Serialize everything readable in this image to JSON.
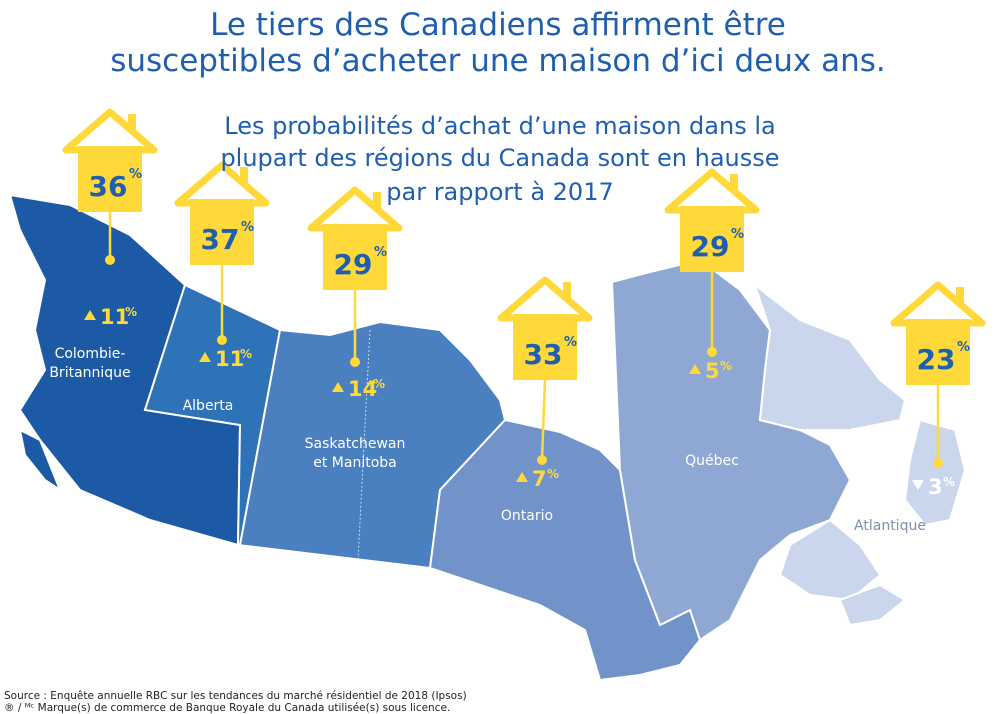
{
  "title": {
    "line1": "Le tiers des Canadiens affirment être",
    "line2": "susceptibles d’acheter une maison d’ici deux ans."
  },
  "subtitle": {
    "line1": "Les probabilités d’achat d’une maison dans la",
    "line2": "plupart des régions du Canada sont en hausse",
    "line3": "par rapport à 2017"
  },
  "colors": {
    "title": "#1f5fae",
    "house": "#ffd93a",
    "house_text": "#1f5fae",
    "change_text": "#f2c200",
    "bc": "#1d5aa5",
    "alberta": "#2e72b8",
    "sask_man": "#4a80bf",
    "ontario": "#7193c9",
    "quebec": "#8ea7d3",
    "atlantic": "#c9d6ec"
  },
  "regions": [
    {
      "name_line1": "Colombie-",
      "name_line2": "Britannique",
      "pct": "36",
      "change": "11",
      "direction": "up"
    },
    {
      "name_line1": "Alberta",
      "name_line2": "",
      "pct": "37",
      "change": "11",
      "direction": "up"
    },
    {
      "name_line1": "Saskatchewan",
      "name_line2": "et Manitoba",
      "pct": "29",
      "change": "14",
      "direction": "up"
    },
    {
      "name_line1": "Ontario",
      "name_line2": "",
      "pct": "33",
      "change": "7",
      "direction": "up"
    },
    {
      "name_line1": "Québec",
      "name_line2": "",
      "pct": "29",
      "change": "5",
      "direction": "up"
    },
    {
      "name_line1": "Atlantique",
      "name_line2": "",
      "pct": "23",
      "change": "3",
      "direction": "down"
    }
  ],
  "units": {
    "pct": "%"
  },
  "footer": {
    "source": "Source : Enquête annuelle RBC sur les tendances du marché résidentiel de 2018 (Ipsos)",
    "trademark": "® / ᴹᶜ Marque(s) de commerce de Banque Royale du Canada utilisée(s) sous licence."
  }
}
